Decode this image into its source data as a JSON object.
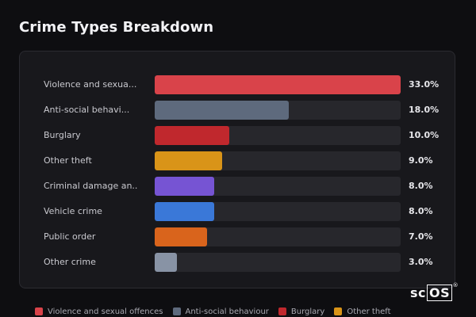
{
  "title": "Crime Types Breakdown",
  "chart_data": {
    "type": "bar",
    "orientation": "horizontal",
    "categories": [
      "Violence and sexua...",
      "Anti-social behavi...",
      "Burglary",
      "Other theft",
      "Criminal damage an...",
      "Vehicle crime",
      "Public order",
      "Other crime"
    ],
    "values": [
      33.0,
      18.0,
      10.0,
      9.0,
      8.0,
      8.0,
      7.0,
      3.0
    ],
    "value_labels": [
      "33.0%",
      "18.0%",
      "10.0%",
      "9.0%",
      "8.0%",
      "8.0%",
      "7.0%",
      "3.0%"
    ],
    "colors": [
      "#d9434a",
      "#5e6a7d",
      "#c0282d",
      "#d99418",
      "#7654d3",
      "#3a78d8",
      "#d9641c",
      "#8893a5"
    ],
    "xlim": [
      0,
      33
    ],
    "legend_position": "bottom"
  },
  "legend": {
    "items": [
      {
        "label": "Violence and sexual offences",
        "color": "#d9434a"
      },
      {
        "label": "Anti-social behaviour",
        "color": "#5e6a7d"
      },
      {
        "label": "Burglary",
        "color": "#c0282d"
      },
      {
        "label": "Other theft",
        "color": "#d99418"
      }
    ]
  },
  "brand": {
    "prefix": "sc",
    "boxed": "OS",
    "reg": "®"
  }
}
